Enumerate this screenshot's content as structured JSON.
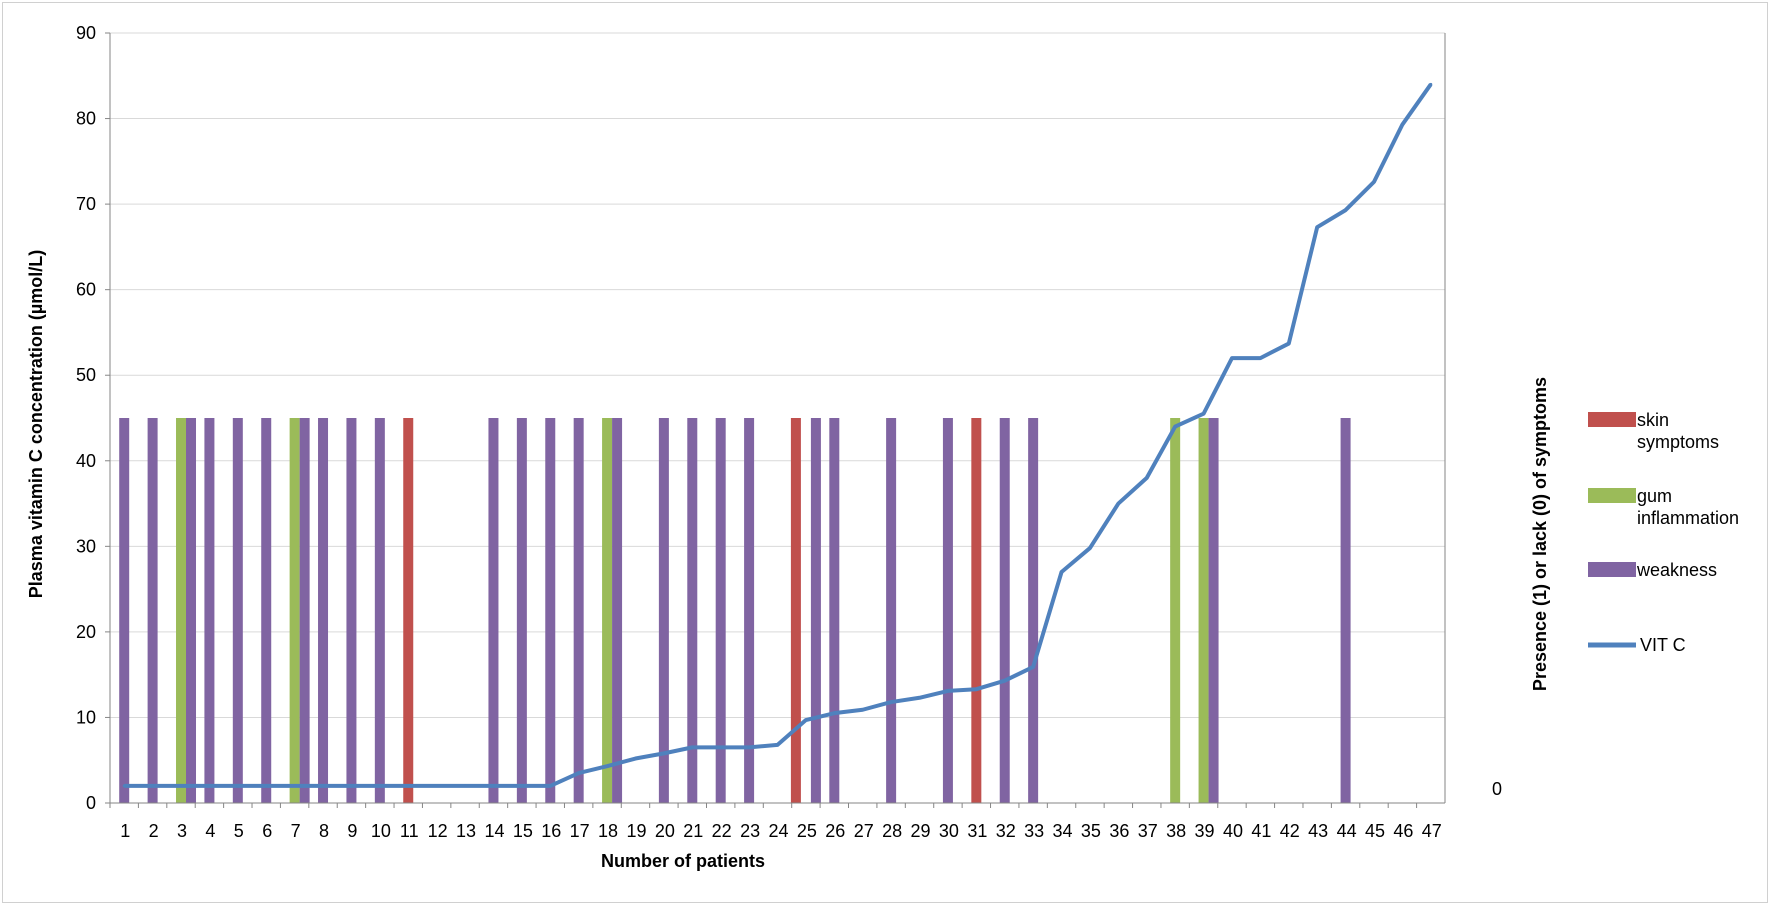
{
  "chart_data": {
    "type": "bar",
    "xlabel": "Number of patients",
    "ylabel": "Plasma vitamin C concentration (µmol/L)",
    "y2label": "Presence (1) or lack (0) of symptoms",
    "y2_tick_label": "0",
    "ylim": [
      0,
      90
    ],
    "yticks": [
      0,
      10,
      20,
      30,
      40,
      50,
      60,
      70,
      80,
      90
    ],
    "grid": true,
    "legend_position": "right",
    "categories": [
      "1",
      "2",
      "3",
      "4",
      "5",
      "6",
      "7",
      "8",
      "9",
      "10",
      "11",
      "12",
      "13",
      "14",
      "15",
      "16",
      "17",
      "18",
      "19",
      "20",
      "21",
      "22",
      "23",
      "24",
      "25",
      "26",
      "27",
      "28",
      "29",
      "30",
      "31",
      "32",
      "33",
      "34",
      "35",
      "36",
      "37",
      "38",
      "39",
      "40",
      "41",
      "42",
      "43",
      "44",
      "45",
      "46",
      "47"
    ],
    "bar_series": [
      {
        "name": "skin symptoms",
        "color": "#c0504d",
        "values": [
          0,
          0,
          0,
          0,
          0,
          0,
          0,
          0,
          0,
          0,
          1,
          0,
          0,
          0,
          0,
          0,
          0,
          0,
          0,
          0,
          0,
          0,
          0,
          0,
          1,
          0,
          0,
          0,
          0,
          0,
          1,
          0,
          0,
          0,
          0,
          0,
          0,
          0,
          0,
          0,
          0,
          0,
          0,
          0,
          0,
          0,
          0
        ]
      },
      {
        "name": "gum inflammation",
        "color": "#9bbb59",
        "values": [
          0,
          0,
          1,
          0,
          0,
          0,
          1,
          0,
          0,
          0,
          0,
          0,
          0,
          0,
          0,
          0,
          0,
          1,
          0,
          0,
          0,
          0,
          0,
          0,
          0,
          0,
          0,
          0,
          0,
          0,
          0,
          0,
          0,
          0,
          0,
          0,
          0,
          1,
          1,
          0,
          0,
          0,
          0,
          0,
          0,
          0,
          0
        ]
      },
      {
        "name": "weakness",
        "color": "#8064a2",
        "values": [
          1,
          1,
          1,
          1,
          1,
          1,
          1,
          1,
          1,
          1,
          0,
          0,
          0,
          1,
          1,
          1,
          1,
          1,
          0,
          1,
          1,
          1,
          1,
          0,
          1,
          1,
          0,
          1,
          0,
          1,
          0,
          1,
          1,
          0,
          0,
          0,
          0,
          0,
          1,
          0,
          0,
          0,
          0,
          1,
          0,
          0,
          0
        ]
      }
    ],
    "line_series": {
      "name": "VIT C",
      "color": "#4f81bd",
      "values": [
        2,
        2,
        2,
        2,
        2,
        2,
        2,
        2,
        2,
        2,
        2,
        2,
        2,
        2,
        2,
        2,
        3.5,
        4.3,
        5.2,
        5.8,
        6.5,
        6.5,
        6.5,
        6.8,
        9.7,
        10.5,
        10.9,
        11.8,
        12.3,
        13.1,
        13.3,
        14.3,
        15.9,
        27,
        29.8,
        35,
        38,
        44,
        45.5,
        52,
        52,
        53.7,
        67.3,
        69.3,
        72.6,
        79.3,
        84
      ]
    }
  }
}
